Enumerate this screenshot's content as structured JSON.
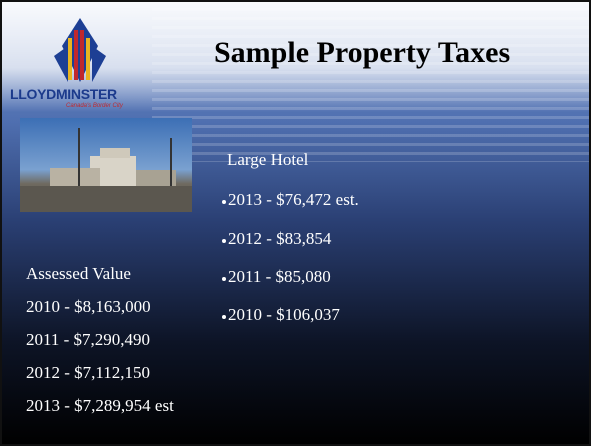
{
  "logo": {
    "name": "LLOYDMINSTER",
    "tagline": "Canada's Border City"
  },
  "title": "Sample Property Taxes",
  "left": {
    "heading": "Assessed Value",
    "items": [
      "2010 - $8,163,000",
      "2011 - $7,290,490",
      "2012 - $7,112,150",
      "2013 - $7,289,954 est"
    ]
  },
  "right": {
    "heading": "Large Hotel",
    "items": [
      "2013 - $76,472 est.",
      "2012 - $83,854",
      "2011 - $85,080",
      "2010 - $106,037"
    ]
  }
}
